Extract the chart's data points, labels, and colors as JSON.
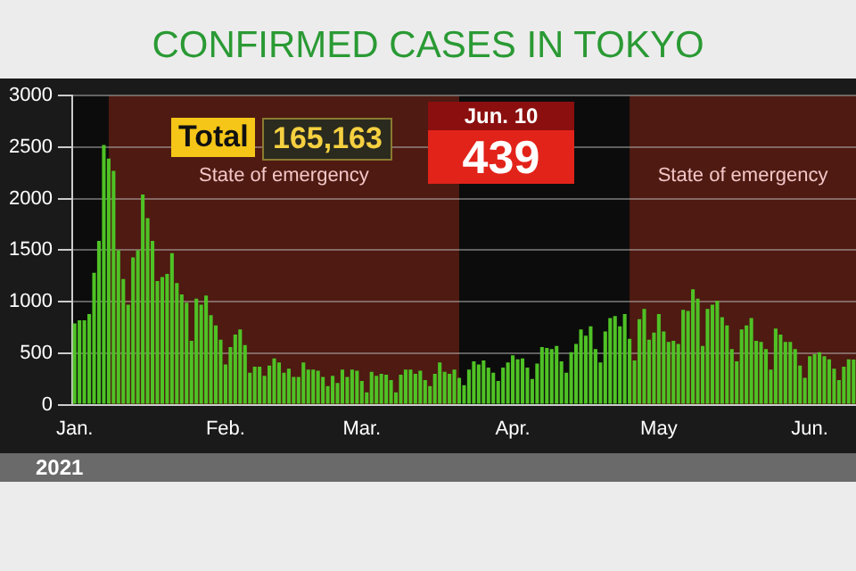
{
  "chart_data": {
    "type": "bar",
    "title": "CONFIRMED CASES IN TOKYO",
    "x": [
      "2021-01-01",
      "2021-01-02",
      "2021-01-03",
      "2021-01-04",
      "2021-01-05",
      "2021-01-06",
      "2021-01-07",
      "2021-01-08",
      "2021-01-09",
      "2021-01-10",
      "2021-01-11",
      "2021-01-12",
      "2021-01-13",
      "2021-01-14",
      "2021-01-15",
      "2021-01-16",
      "2021-01-17",
      "2021-01-18",
      "2021-01-19",
      "2021-01-20",
      "2021-01-21",
      "2021-01-22",
      "2021-01-23",
      "2021-01-24",
      "2021-01-25",
      "2021-01-26",
      "2021-01-27",
      "2021-01-28",
      "2021-01-29",
      "2021-01-30",
      "2021-01-31",
      "2021-02-01",
      "2021-02-02",
      "2021-02-03",
      "2021-02-04",
      "2021-02-05",
      "2021-02-06",
      "2021-02-07",
      "2021-02-08",
      "2021-02-09",
      "2021-02-10",
      "2021-02-11",
      "2021-02-12",
      "2021-02-13",
      "2021-02-14",
      "2021-02-15",
      "2021-02-16",
      "2021-02-17",
      "2021-02-18",
      "2021-02-19",
      "2021-02-20",
      "2021-02-21",
      "2021-02-22",
      "2021-02-23",
      "2021-02-24",
      "2021-02-25",
      "2021-02-26",
      "2021-02-27",
      "2021-02-28",
      "2021-03-01",
      "2021-03-02",
      "2021-03-03",
      "2021-03-04",
      "2021-03-05",
      "2021-03-06",
      "2021-03-07",
      "2021-03-08",
      "2021-03-09",
      "2021-03-10",
      "2021-03-11",
      "2021-03-12",
      "2021-03-13",
      "2021-03-14",
      "2021-03-15",
      "2021-03-16",
      "2021-03-17",
      "2021-03-18",
      "2021-03-19",
      "2021-03-20",
      "2021-03-21",
      "2021-03-22",
      "2021-03-23",
      "2021-03-24",
      "2021-03-25",
      "2021-03-26",
      "2021-03-27",
      "2021-03-28",
      "2021-03-29",
      "2021-03-30",
      "2021-03-31",
      "2021-04-01",
      "2021-04-02",
      "2021-04-03",
      "2021-04-04",
      "2021-04-05",
      "2021-04-06",
      "2021-04-07",
      "2021-04-08",
      "2021-04-09",
      "2021-04-10",
      "2021-04-11",
      "2021-04-12",
      "2021-04-13",
      "2021-04-14",
      "2021-04-15",
      "2021-04-16",
      "2021-04-17",
      "2021-04-18",
      "2021-04-19",
      "2021-04-20",
      "2021-04-21",
      "2021-04-22",
      "2021-04-23",
      "2021-04-24",
      "2021-04-25",
      "2021-04-26",
      "2021-04-27",
      "2021-04-28",
      "2021-04-29",
      "2021-04-30",
      "2021-05-01",
      "2021-05-02",
      "2021-05-03",
      "2021-05-04",
      "2021-05-05",
      "2021-05-06",
      "2021-05-07",
      "2021-05-08",
      "2021-05-09",
      "2021-05-10",
      "2021-05-11",
      "2021-05-12",
      "2021-05-13",
      "2021-05-14",
      "2021-05-15",
      "2021-05-16",
      "2021-05-17",
      "2021-05-18",
      "2021-05-19",
      "2021-05-20",
      "2021-05-21",
      "2021-05-22",
      "2021-05-23",
      "2021-05-24",
      "2021-05-25",
      "2021-05-26",
      "2021-05-27",
      "2021-05-28",
      "2021-05-29",
      "2021-05-30",
      "2021-05-31",
      "2021-06-01",
      "2021-06-02",
      "2021-06-03",
      "2021-06-04",
      "2021-06-05",
      "2021-06-06",
      "2021-06-07",
      "2021-06-08",
      "2021-06-09",
      "2021-06-10"
    ],
    "values": [
      790,
      820,
      820,
      880,
      1280,
      1590,
      2520,
      2390,
      2270,
      1500,
      1220,
      970,
      1430,
      1500,
      2040,
      1810,
      1590,
      1200,
      1240,
      1270,
      1470,
      1180,
      1070,
      990,
      620,
      1030,
      970,
      1060,
      870,
      770,
      630,
      390,
      560,
      680,
      730,
      580,
      310,
      370,
      370,
      280,
      380,
      450,
      410,
      310,
      350,
      270,
      270,
      410,
      340,
      340,
      330,
      270,
      180,
      280,
      210,
      340,
      270,
      340,
      330,
      230,
      120,
      320,
      280,
      300,
      290,
      240,
      120,
      290,
      340,
      340,
      300,
      330,
      240,
      180,
      300,
      410,
      320,
      300,
      340,
      260,
      190,
      340,
      420,
      390,
      430,
      360,
      310,
      230,
      360,
      410,
      480,
      440,
      450,
      360,
      250,
      400,
      560,
      550,
      540,
      570,
      420,
      310,
      510,
      590,
      730,
      670,
      760,
      540,
      410,
      710,
      840,
      860,
      760,
      880,
      640,
      430,
      830,
      930,
      630,
      700,
      880,
      710,
      610,
      620,
      590,
      920,
      910,
      1120,
      1030,
      570,
      930,
      970,
      1010,
      850,
      770,
      540,
      420,
      730,
      770,
      840,
      620,
      610,
      540,
      340,
      740,
      680,
      610,
      610,
      540,
      380,
      260,
      470,
      490,
      510,
      470,
      440,
      350,
      240,
      370,
      440,
      439
    ],
    "color": "#4fc225",
    "xlim": [
      "2020-12-31T12:00",
      "2021-06-10T12:00"
    ],
    "xticks": [
      {
        "value": "2021-01-01",
        "label": "Jan."
      },
      {
        "value": "2021-02-01",
        "label": "Feb."
      },
      {
        "value": "2021-03-01",
        "label": "Mar."
      },
      {
        "value": "2021-04-01",
        "label": "Apr."
      },
      {
        "value": "2021-05-01",
        "label": "May"
      },
      {
        "value": "2021-06-01",
        "label": "Jun."
      }
    ],
    "ylim": [
      0,
      3000
    ],
    "yticks": [
      0,
      500,
      1000,
      1500,
      2000,
      2500,
      3000
    ],
    "grid": "y",
    "bands": [
      {
        "axis": "x",
        "from": "2021-01-08",
        "to": "2021-03-21",
        "label": "State of emergency",
        "color": "#4e1a12"
      },
      {
        "axis": "x",
        "from": "2021-04-25",
        "to": "2021-06-10T12:00",
        "label": "State of emergency",
        "color": "#4e1a12"
      }
    ],
    "annotations": [
      "Total",
      "165,163",
      "Jun. 10",
      "439",
      "2021"
    ]
  }
}
